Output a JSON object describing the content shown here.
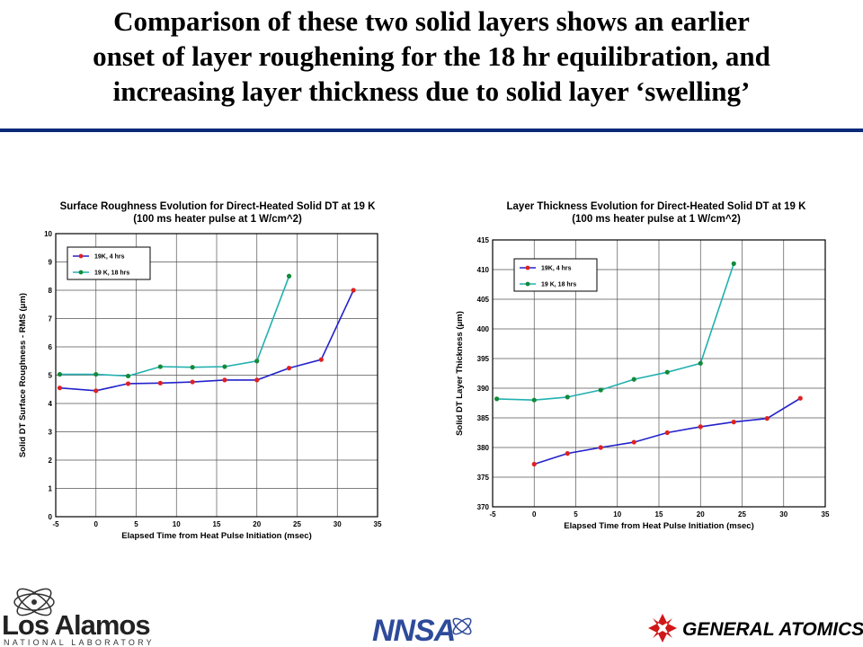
{
  "slide": {
    "title_lines": [
      "Comparison of these two solid layers shows an earlier",
      "onset of layer roughening for the 18 hr equilibration, and",
      "increasing layer thickness due to solid layer ‘swelling’"
    ]
  },
  "logos": {
    "lanl_name": "Los Alamos",
    "lanl_sub": "NATIONAL LABORATORY",
    "nnsa": "NNSA",
    "ga": "GENERAL ATOMICS"
  },
  "colors": {
    "rule": "#0a2a7a",
    "series_4hr_line": "#2222cc",
    "series_4hr_marker": "#e02020",
    "series_18hr_line": "#22b0b0",
    "series_18hr_marker": "#138a3a",
    "grid": "#555555"
  },
  "chart_data": [
    {
      "type": "line",
      "title": "Surface Roughness Evolution for Direct-Heated Solid DT at 19 K",
      "subtitle": "(100 ms heater pulse at 1 W/cm^2)",
      "xlabel": "Elapsed Time from Heat Pulse Initiation (msec)",
      "ylabel": "Solid DT Surface Roughness - RMS (μm)",
      "xlim": [
        -5,
        35
      ],
      "ylim": [
        0,
        10
      ],
      "xticks": [
        -5,
        0,
        5,
        10,
        15,
        20,
        25,
        30,
        35
      ],
      "yticks": [
        0,
        1,
        2,
        3,
        4,
        5,
        6,
        7,
        8,
        9,
        10
      ],
      "grid": true,
      "legend_position": "top-left",
      "series": [
        {
          "name": "19K, 4 hrs",
          "x": [
            -4.5,
            0,
            4,
            8,
            12,
            16,
            20,
            24,
            28,
            32
          ],
          "y": [
            4.55,
            4.45,
            4.7,
            4.72,
            4.76,
            4.83,
            4.83,
            5.25,
            5.55,
            8.0
          ]
        },
        {
          "name": "19 K, 18 hrs",
          "x": [
            -4.5,
            0,
            4,
            8,
            12,
            16,
            20,
            24
          ],
          "y": [
            5.03,
            5.03,
            4.97,
            5.3,
            5.28,
            5.3,
            5.5,
            8.5
          ]
        }
      ]
    },
    {
      "type": "line",
      "title": "Layer Thickness Evolution for Direct-Heated Solid DT at 19 K",
      "subtitle": "(100 ms heater pulse at 1 W/cm^2)",
      "xlabel": "Elapsed Time from Heat Pulse Initiation (msec)",
      "ylabel": "Solid DT Layer Thickness (μm)",
      "xlim": [
        -5,
        35
      ],
      "ylim": [
        370,
        415
      ],
      "xticks": [
        -5,
        0,
        5,
        10,
        15,
        20,
        25,
        30,
        35
      ],
      "yticks": [
        370,
        375,
        380,
        385,
        390,
        395,
        400,
        405,
        410,
        415
      ],
      "grid": true,
      "legend_position": "top-left",
      "series": [
        {
          "name": "19K, 4 hrs",
          "x": [
            0,
            4,
            8,
            12,
            16,
            20,
            24,
            28,
            32
          ],
          "y": [
            377.2,
            379.0,
            380.0,
            380.9,
            382.5,
            383.5,
            384.3,
            384.9,
            388.3
          ]
        },
        {
          "name": "19 K, 18 hrs",
          "x": [
            -4.5,
            0,
            4,
            8,
            12,
            16,
            20,
            24
          ],
          "y": [
            388.2,
            388.0,
            388.5,
            389.7,
            391.5,
            392.7,
            394.2,
            411.0
          ]
        }
      ]
    }
  ]
}
